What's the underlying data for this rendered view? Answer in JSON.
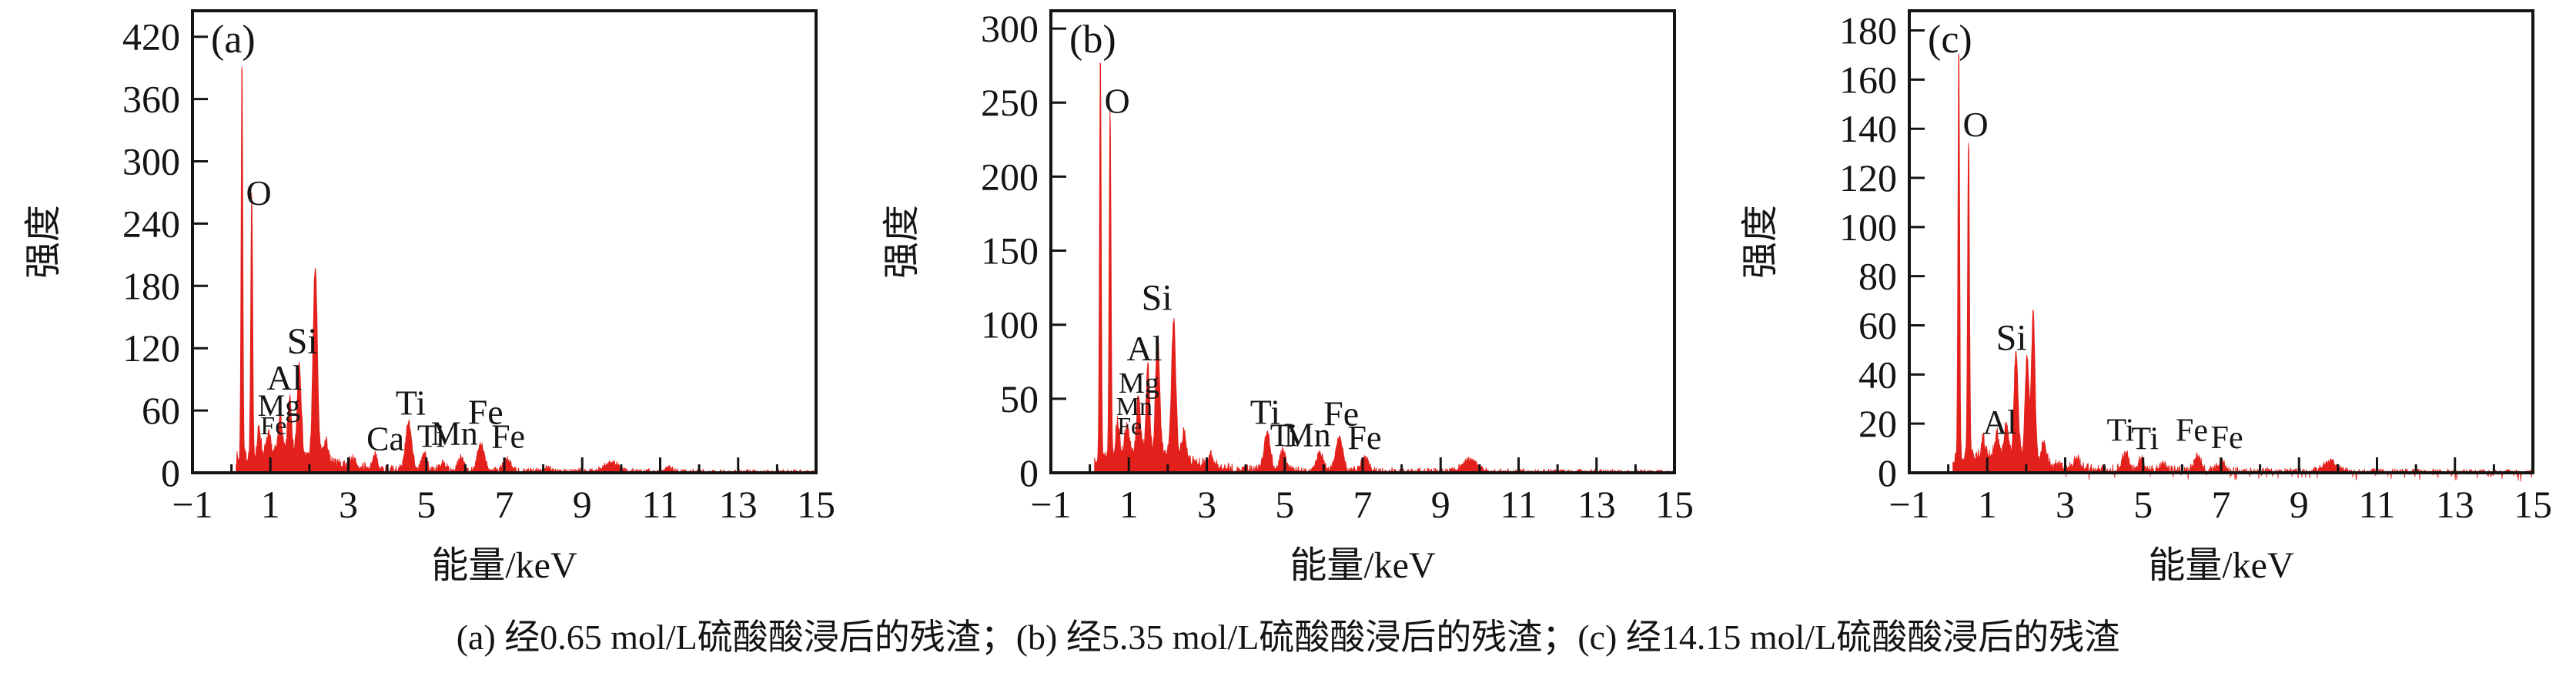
{
  "figure": {
    "caption": "(a) 经0.65 mol/L硫酸酸浸后的残渣；(b) 经5.35 mol/L硫酸酸浸后的残渣；(c) 经14.15 mol/L硫酸酸浸后的残渣",
    "axis_color": "#141414",
    "trace_color": "#e3201b"
  },
  "chart_data": [
    {
      "panel": "a",
      "tag": "(a)",
      "type": "line",
      "description": "经0.65 mol/L硫酸酸浸后的残渣",
      "xlabel": "能量/keV",
      "ylabel": "强度",
      "xlim": [
        -1,
        15
      ],
      "ylim": [
        0,
        445
      ],
      "x_tick_values": [
        -1,
        1,
        3,
        5,
        7,
        9,
        11,
        13,
        15
      ],
      "x_tick_labels": [
        "−1",
        "1",
        "3",
        "5",
        "7",
        "9",
        "11",
        "13",
        "15"
      ],
      "x_minor_ticks": [
        0,
        2,
        4,
        6,
        8,
        10,
        12,
        14
      ],
      "y_ticks": [
        0,
        60,
        120,
        180,
        240,
        300,
        360,
        420
      ],
      "line_color": "#e3201b",
      "noise": {
        "seed": 7,
        "amp": 11,
        "neg_amp": 0.8
      },
      "continuum": {
        "amp": 16,
        "center": 1.25,
        "sigma": 1.0
      },
      "peaks": [
        {
          "kev": 0.27,
          "intensity": 388,
          "sigma": 0.022
        },
        {
          "kev": 0.52,
          "intensity": 250,
          "sigma": 0.024
        },
        {
          "kev": 0.71,
          "intensity": 26,
          "sigma": 0.04
        },
        {
          "kev": 0.95,
          "intensity": 16,
          "sigma": 0.05
        },
        {
          "kev": 1.25,
          "intensity": 40,
          "sigma": 0.045
        },
        {
          "kev": 1.49,
          "intensity": 54,
          "sigma": 0.045
        },
        {
          "kev": 1.74,
          "intensity": 90,
          "sigma": 0.05
        },
        {
          "kev": 2.15,
          "intensity": 185,
          "sigma": 0.055
        },
        {
          "kev": 2.42,
          "intensity": 20,
          "sigma": 0.06
        },
        {
          "kev": 3.1,
          "intensity": 8,
          "sigma": 0.08
        },
        {
          "kev": 3.69,
          "intensity": 12,
          "sigma": 0.07
        },
        {
          "kev": 4.55,
          "intensity": 46,
          "sigma": 0.08
        },
        {
          "kev": 4.95,
          "intensity": 16,
          "sigma": 0.07
        },
        {
          "kev": 5.42,
          "intensity": 7,
          "sigma": 0.08
        },
        {
          "kev": 5.9,
          "intensity": 13,
          "sigma": 0.08
        },
        {
          "kev": 6.4,
          "intensity": 25,
          "sigma": 0.09
        },
        {
          "kev": 7.06,
          "intensity": 11,
          "sigma": 0.09
        },
        {
          "kev": 8.1,
          "intensity": 4,
          "sigma": 0.1
        },
        {
          "kev": 9.75,
          "intensity": 9,
          "sigma": 0.18
        },
        {
          "kev": 11.2,
          "intensity": 4,
          "sigma": 0.1
        }
      ],
      "element_labels": [
        {
          "text": "O",
          "kev": 0.7,
          "counts": 258,
          "size": 46
        },
        {
          "text": "Fe",
          "kev": 1.08,
          "counts": 37,
          "size": 34
        },
        {
          "text": "Mg",
          "kev": 1.22,
          "counts": 55,
          "size": 40
        },
        {
          "text": "Al",
          "kev": 1.36,
          "counts": 80,
          "size": 46
        },
        {
          "text": "Si",
          "kev": 1.82,
          "counts": 115,
          "size": 48
        },
        {
          "text": "Ca",
          "kev": 3.95,
          "counts": 22,
          "size": 44
        },
        {
          "text": "Ti",
          "kev": 4.6,
          "counts": 56,
          "size": 46
        },
        {
          "text": "Ti",
          "kev": 5.12,
          "counts": 25,
          "size": 42
        },
        {
          "text": "Mn",
          "kev": 5.72,
          "counts": 27,
          "size": 44
        },
        {
          "text": "Fe",
          "kev": 6.52,
          "counts": 47,
          "size": 46
        },
        {
          "text": "Fe",
          "kev": 7.1,
          "counts": 24,
          "size": 44
        }
      ]
    },
    {
      "panel": "b",
      "tag": "(b)",
      "type": "line",
      "description": "经5.35 mol/L硫酸酸浸后的残渣",
      "xlabel": "能量/keV",
      "ylabel": "强度",
      "xlim": [
        -1,
        15
      ],
      "ylim": [
        0,
        312
      ],
      "x_tick_values": [
        -1,
        1,
        3,
        5,
        7,
        9,
        11,
        13,
        15
      ],
      "x_tick_labels": [
        "−1",
        "1",
        "3",
        "5",
        "7",
        "9",
        "11",
        "13",
        "15"
      ],
      "x_minor_ticks": [
        0,
        2,
        4,
        6,
        8,
        10,
        12,
        14
      ],
      "y_ticks": [
        0,
        50,
        100,
        150,
        200,
        250,
        300
      ],
      "line_color": "#e3201b",
      "noise": {
        "seed": 13,
        "amp": 8,
        "neg_amp": 1.2
      },
      "continuum": {
        "amp": 13,
        "center": 1.25,
        "sigma": 1.0
      },
      "peaks": [
        {
          "kev": 0.27,
          "intensity": 278,
          "sigma": 0.022
        },
        {
          "kev": 0.52,
          "intensity": 235,
          "sigma": 0.024
        },
        {
          "kev": 0.71,
          "intensity": 22,
          "sigma": 0.04
        },
        {
          "kev": 0.95,
          "intensity": 15,
          "sigma": 0.05
        },
        {
          "kev": 1.25,
          "intensity": 38,
          "sigma": 0.045
        },
        {
          "kev": 1.49,
          "intensity": 56,
          "sigma": 0.045
        },
        {
          "kev": 1.74,
          "intensity": 80,
          "sigma": 0.05
        },
        {
          "kev": 2.15,
          "intensity": 92,
          "sigma": 0.055
        },
        {
          "kev": 2.42,
          "intensity": 18,
          "sigma": 0.06
        },
        {
          "kev": 3.1,
          "intensity": 7,
          "sigma": 0.08
        },
        {
          "kev": 4.55,
          "intensity": 26,
          "sigma": 0.08
        },
        {
          "kev": 4.95,
          "intensity": 14,
          "sigma": 0.07
        },
        {
          "kev": 5.9,
          "intensity": 12,
          "sigma": 0.08
        },
        {
          "kev": 6.4,
          "intensity": 23,
          "sigma": 0.09
        },
        {
          "kev": 7.06,
          "intensity": 10,
          "sigma": 0.09
        },
        {
          "kev": 9.75,
          "intensity": 8,
          "sigma": 0.18
        }
      ],
      "element_labels": [
        {
          "text": "O",
          "kev": 0.7,
          "counts": 243,
          "size": 46
        },
        {
          "text": "Fe",
          "kev": 1.02,
          "counts": 26,
          "size": 32
        },
        {
          "text": "Mn",
          "kev": 1.14,
          "counts": 39,
          "size": 34
        },
        {
          "text": "Mg",
          "kev": 1.26,
          "counts": 54,
          "size": 38
        },
        {
          "text": "Al",
          "kev": 1.4,
          "counts": 76,
          "size": 46
        },
        {
          "text": "Si",
          "kev": 1.72,
          "counts": 110,
          "size": 48
        },
        {
          "text": "Ti",
          "kev": 4.5,
          "counts": 33,
          "size": 46
        },
        {
          "text": "Ti",
          "kev": 4.98,
          "counts": 18,
          "size": 42
        },
        {
          "text": "Mn",
          "kev": 5.58,
          "counts": 18,
          "size": 44
        },
        {
          "text": "Fe",
          "kev": 6.45,
          "counts": 32,
          "size": 46
        },
        {
          "text": "Fe",
          "kev": 7.05,
          "counts": 16,
          "size": 44
        }
      ]
    },
    {
      "panel": "c",
      "tag": "(c)",
      "type": "line",
      "description": "经14.15 mol/L硫酸酸浸后的残渣",
      "xlabel": "能量/keV",
      "ylabel": "强度",
      "xlim": [
        -1,
        15
      ],
      "ylim": [
        0,
        188
      ],
      "x_tick_values": [
        -1,
        1,
        3,
        5,
        7,
        9,
        11,
        13,
        15
      ],
      "x_tick_labels": [
        "−1",
        "1",
        "3",
        "5",
        "7",
        "9",
        "11",
        "13",
        "15"
      ],
      "x_minor_ticks": [
        0,
        2,
        4,
        6,
        8,
        10,
        12,
        14
      ],
      "y_ticks": [
        0,
        20,
        40,
        60,
        80,
        100,
        120,
        140,
        160,
        180
      ],
      "line_color": "#e3201b",
      "noise": {
        "seed": 21,
        "amp": 5,
        "neg_amp": 3.2
      },
      "continuum": {
        "amp": 6,
        "center": 1.3,
        "sigma": 1.0
      },
      "peaks": [
        {
          "kev": 0.27,
          "intensity": 171,
          "sigma": 0.022
        },
        {
          "kev": 0.52,
          "intensity": 131,
          "sigma": 0.024
        },
        {
          "kev": 0.9,
          "intensity": 6,
          "sigma": 0.05
        },
        {
          "kev": 1.25,
          "intensity": 8,
          "sigma": 0.05
        },
        {
          "kev": 1.49,
          "intensity": 12,
          "sigma": 0.05
        },
        {
          "kev": 1.74,
          "intensity": 43,
          "sigma": 0.05
        },
        {
          "kev": 2.02,
          "intensity": 41,
          "sigma": 0.05
        },
        {
          "kev": 2.18,
          "intensity": 60,
          "sigma": 0.045
        },
        {
          "kev": 2.45,
          "intensity": 8,
          "sigma": 0.06
        },
        {
          "kev": 3.3,
          "intensity": 4,
          "sigma": 0.08
        },
        {
          "kev": 4.55,
          "intensity": 7,
          "sigma": 0.08
        },
        {
          "kev": 4.95,
          "intensity": 5,
          "sigma": 0.07
        },
        {
          "kev": 5.5,
          "intensity": 3,
          "sigma": 0.08
        },
        {
          "kev": 6.4,
          "intensity": 6,
          "sigma": 0.09
        },
        {
          "kev": 7.0,
          "intensity": 4,
          "sigma": 0.09
        },
        {
          "kev": 9.8,
          "intensity": 4,
          "sigma": 0.18
        }
      ],
      "element_labels": [
        {
          "text": "O",
          "kev": 0.7,
          "counts": 137,
          "size": 46
        },
        {
          "text": "Al",
          "kev": 1.32,
          "counts": 16,
          "size": 44
        },
        {
          "text": "Si",
          "kev": 1.62,
          "counts": 50,
          "size": 48
        },
        {
          "text": "Ti",
          "kev": 4.42,
          "counts": 13,
          "size": 42
        },
        {
          "text": "Ti",
          "kev": 5.05,
          "counts": 9.5,
          "size": 42
        },
        {
          "text": "Fe",
          "kev": 6.25,
          "counts": 13,
          "size": 42
        },
        {
          "text": "Fe",
          "kev": 7.15,
          "counts": 10,
          "size": 42
        }
      ]
    }
  ]
}
